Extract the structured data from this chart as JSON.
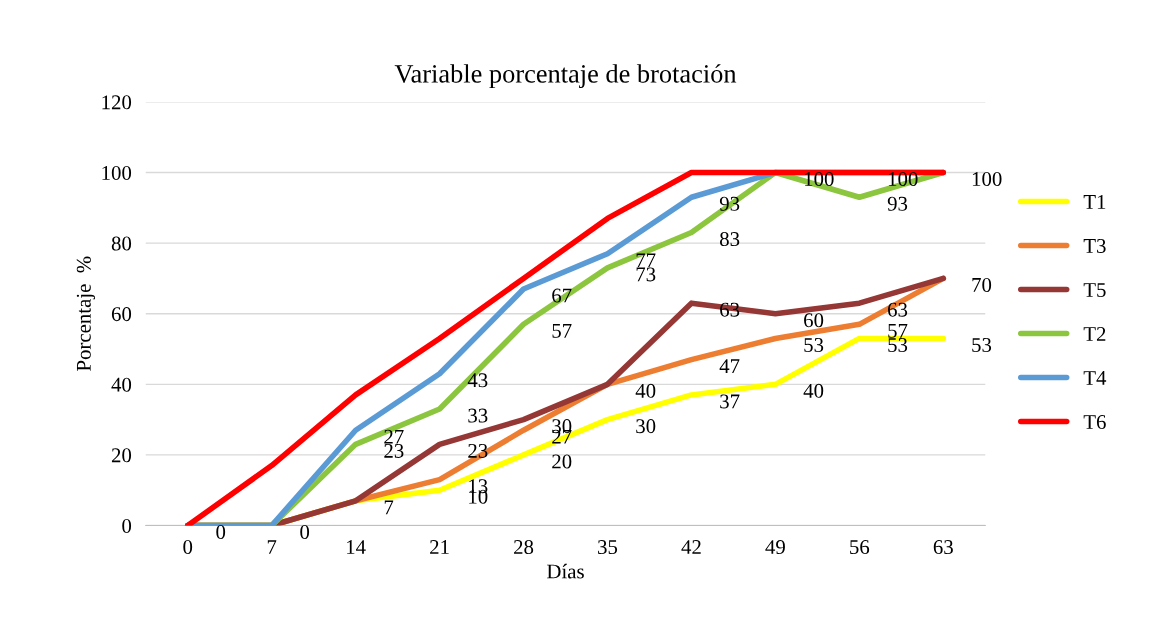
{
  "chart_data": {
    "type": "line",
    "title": "Variable porcentaje de brotación",
    "xlabel": "Días",
    "ylabel": "Porcentaje  %",
    "categories": [
      "0",
      "7",
      "14",
      "21",
      "28",
      "35",
      "42",
      "49",
      "56",
      "63"
    ],
    "series": [
      {
        "name": "T1",
        "color": "#ffff00",
        "values": [
          0,
          0,
          7,
          10,
          20,
          30,
          37,
          40,
          53,
          53
        ],
        "value_labels": [
          null,
          null,
          null,
          "10",
          "20",
          "30",
          "37",
          "40",
          "53",
          "53"
        ]
      },
      {
        "name": "T3",
        "color": "#ed7d31",
        "values": [
          0,
          0,
          7,
          13,
          27,
          40,
          47,
          53,
          57,
          70
        ],
        "value_labels": [
          null,
          null,
          null,
          "13",
          "27",
          null,
          "47",
          "53",
          "57",
          null
        ]
      },
      {
        "name": "T5",
        "color": "#953735",
        "values": [
          0,
          0,
          7,
          23,
          30,
          40,
          63,
          60,
          63,
          70
        ],
        "value_labels": [
          null,
          null,
          "7",
          "23",
          "30",
          "40",
          "63",
          "60",
          "63",
          "70"
        ]
      },
      {
        "name": "T2",
        "color": "#8cc63f",
        "values": [
          0,
          0,
          23,
          33,
          57,
          73,
          83,
          100,
          93,
          100
        ],
        "value_labels": [
          null,
          null,
          "23",
          "33",
          "57",
          "73",
          "83",
          null,
          "93",
          null
        ]
      },
      {
        "name": "T4",
        "color": "#5b9bd5",
        "values": [
          0,
          0,
          27,
          43,
          67,
          77,
          93,
          100,
          100,
          100
        ],
        "value_labels": [
          "0",
          "0",
          "27",
          "43",
          "67",
          "77",
          "93",
          "100",
          "100",
          "100"
        ]
      },
      {
        "name": "T6",
        "color": "#ff0000",
        "values": [
          0,
          17,
          37,
          53,
          70,
          87,
          100,
          100,
          100,
          100
        ]
      }
    ],
    "ylim": [
      0,
      120
    ],
    "yticks": [
      0,
      20,
      40,
      60,
      80,
      100,
      120
    ],
    "grid": "y",
    "legend": "right",
    "marker": "none",
    "line_style": "solid"
  }
}
